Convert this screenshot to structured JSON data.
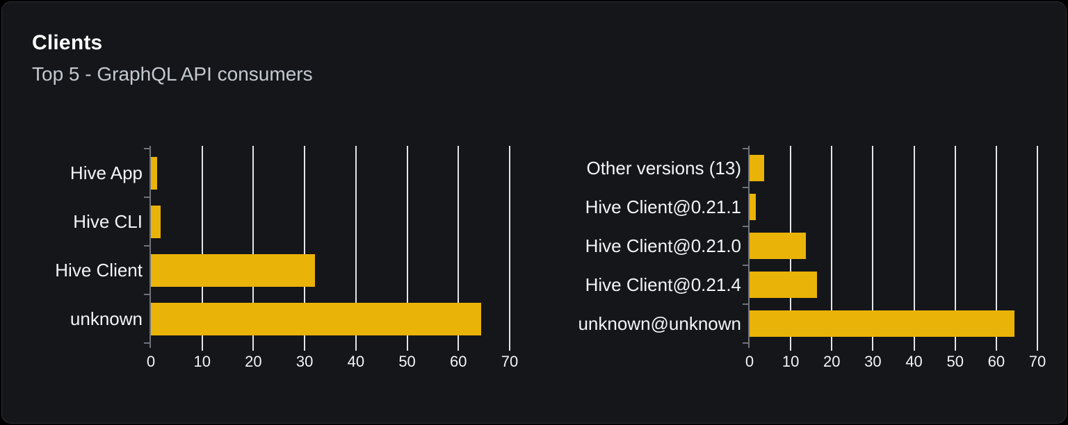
{
  "header": {
    "title": "Clients",
    "subtitle": "Top 5 - GraphQL API consumers"
  },
  "colors": {
    "background": "#000000",
    "card_bg": "#14161a",
    "card_border": "#2b2e33",
    "title": "#ffffff",
    "subtitle": "#c4c9d0",
    "label": "#f2f4f6",
    "bar": "#eab308",
    "gridline": "#e2e5e9",
    "axis": "#6e737c"
  },
  "chart_data": [
    {
      "type": "bar",
      "orientation": "horizontal",
      "title": "",
      "xlabel": "",
      "ylabel": "",
      "categories": [
        "Hive App",
        "Hive CLI",
        "Hive Client",
        "unknown"
      ],
      "values": [
        1.2,
        1.9,
        32,
        64.5
      ],
      "xticks": [
        0,
        10,
        20,
        30,
        40,
        50,
        60,
        70
      ],
      "xlim": [
        0,
        70
      ],
      "grid": true,
      "legend": "none"
    },
    {
      "type": "bar",
      "orientation": "horizontal",
      "title": "",
      "xlabel": "",
      "ylabel": "",
      "categories": [
        "Other versions (13)",
        "Hive Client@0.21.1",
        "Hive Client@0.21.0",
        "Hive Client@0.21.4",
        "unknown@unknown"
      ],
      "values": [
        3.6,
        1.6,
        13.7,
        16.4,
        64.5
      ],
      "xticks": [
        0,
        10,
        20,
        30,
        40,
        50,
        60,
        70
      ],
      "xlim": [
        0,
        70
      ],
      "grid": true,
      "legend": "none"
    }
  ]
}
